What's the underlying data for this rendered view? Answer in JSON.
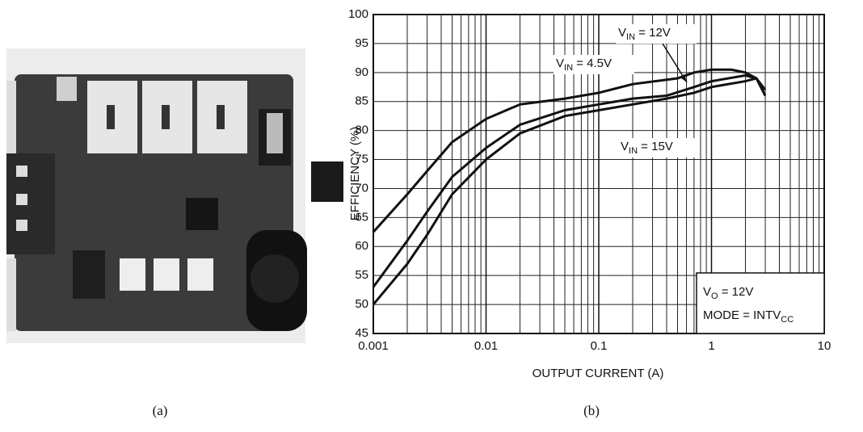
{
  "figure": {
    "captions": [
      "(a)",
      "(b)"
    ]
  },
  "chart_data": {
    "type": "line",
    "xlabel": "OUTPUT CURRENT (A)",
    "ylabel": "EFFICIENCY (%)",
    "xscale": "log",
    "grid": true,
    "xlim": [
      0.001,
      10
    ],
    "xticks": [
      0.001,
      0.01,
      0.1,
      1,
      10
    ],
    "xminor": [
      0.002,
      0.003,
      0.004,
      0.005,
      0.006,
      0.007,
      0.008,
      0.009,
      0.02,
      0.03,
      0.04,
      0.05,
      0.06,
      0.07,
      0.08,
      0.09,
      0.2,
      0.3,
      0.4,
      0.5,
      0.6,
      0.7,
      0.8,
      0.9,
      2,
      3,
      4,
      5,
      6,
      7,
      8,
      9
    ],
    "ylim": [
      45,
      100
    ],
    "yticks": [
      45,
      50,
      55,
      60,
      65,
      70,
      75,
      80,
      85,
      90,
      95,
      100
    ],
    "series": [
      {
        "color": "#111111",
        "x": [
          0.001,
          0.002,
          0.003,
          0.005,
          0.01,
          0.02,
          0.05,
          0.1,
          0.2,
          0.5,
          0.7,
          1,
          1.5,
          2,
          2.5
        ],
        "values": [
          62.5,
          69,
          73,
          78,
          82,
          84.5,
          85.5,
          86.5,
          88,
          89,
          90,
          90.5,
          90.5,
          90,
          89
        ]
      },
      {
        "color": "#111111",
        "x": [
          0.001,
          0.002,
          0.003,
          0.005,
          0.01,
          0.02,
          0.05,
          0.1,
          0.2,
          0.4,
          0.7,
          1,
          2,
          2.5,
          3
        ],
        "values": [
          53,
          61,
          66,
          72,
          77,
          81,
          83.5,
          84.5,
          85.5,
          86,
          87.5,
          88.5,
          89.5,
          89,
          87
        ]
      },
      {
        "color": "#111111",
        "x": [
          0.001,
          0.002,
          0.003,
          0.005,
          0.01,
          0.02,
          0.05,
          0.1,
          0.2,
          0.4,
          0.7,
          1,
          2,
          2.5,
          3
        ],
        "values": [
          50,
          57,
          62,
          69,
          75,
          79.5,
          82.5,
          83.5,
          84.5,
          85.5,
          86.5,
          87.5,
          88.5,
          89,
          86
        ]
      }
    ],
    "annotations": [
      {
        "text": "V",
        "sub": "IN",
        "tail": " = 4.5V"
      },
      {
        "text": "V",
        "sub": "IN",
        "tail": " = 12V"
      },
      {
        "text": "V",
        "sub": "IN",
        "tail": " = 15V"
      },
      {
        "text": "V",
        "sub": "O",
        "tail": " = 12V"
      },
      {
        "text": "MODE = INTV",
        "sub": "CC"
      }
    ]
  }
}
